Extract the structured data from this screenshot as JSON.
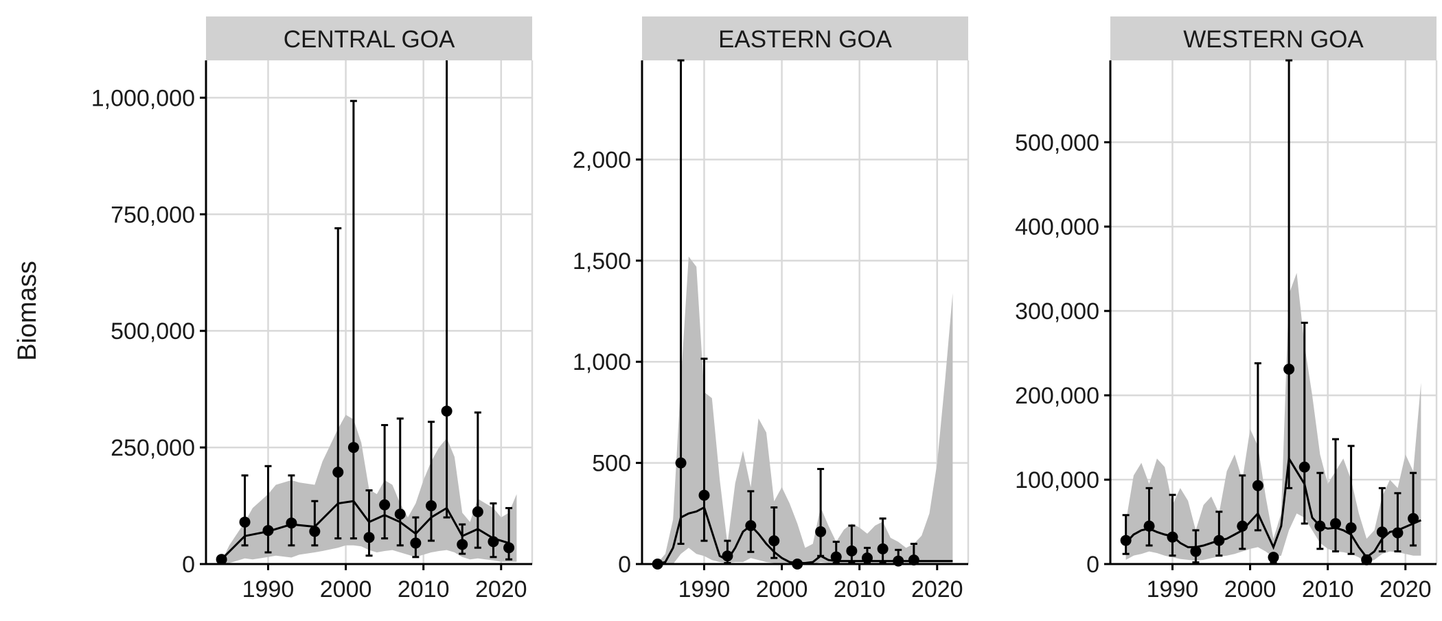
{
  "ylabel": "Biomass",
  "colors": {
    "band": "#bebebe",
    "strip": "#d1d1d1",
    "grid": "#d9d9d9",
    "line": "#000000",
    "points": "#000000",
    "axis": "#000000"
  },
  "chart_data": [
    {
      "type": "line",
      "title": "CENTRAL GOA",
      "xlim": [
        1982,
        2024
      ],
      "ylim": [
        0,
        1000000
      ],
      "ymax": 1080000,
      "xticks": [
        1990,
        2000,
        2010,
        2020
      ],
      "xtick_labels": [
        "1990",
        "2000",
        "2010",
        "2020"
      ],
      "yticks": [
        0,
        250000,
        500000,
        750000,
        1000000
      ],
      "ytick_labels": [
        "0",
        "250,000",
        "500,000",
        "750,000",
        "1,000,000"
      ],
      "band": {
        "x": [
          1984,
          1985,
          1987,
          1988,
          1990,
          1991,
          1993,
          1994,
          1996,
          1997,
          1999,
          2000,
          2001,
          2002,
          2003,
          2004,
          2005,
          2006,
          2007,
          2008,
          2009,
          2010,
          2011,
          2012,
          2013,
          2014,
          2015,
          2016,
          2017,
          2018,
          2019,
          2020,
          2021,
          2022
        ],
        "lower": [
          0,
          2000,
          12000,
          10000,
          15000,
          18000,
          14000,
          20000,
          25000,
          28000,
          35000,
          40000,
          40000,
          38000,
          30000,
          25000,
          28000,
          30000,
          25000,
          20000,
          15000,
          20000,
          25000,
          28000,
          30000,
          25000,
          15000,
          10000,
          12000,
          10000,
          8000,
          5000,
          5000,
          5000
        ],
        "upper": [
          5000,
          40000,
          90000,
          120000,
          150000,
          170000,
          180000,
          175000,
          170000,
          220000,
          290000,
          320000,
          310000,
          260000,
          160000,
          150000,
          180000,
          170000,
          130000,
          100000,
          130000,
          180000,
          220000,
          250000,
          270000,
          230000,
          110000,
          90000,
          140000,
          130000,
          120000,
          100000,
          110000,
          150000
        ]
      },
      "series": [
        {
          "x": [
            1984,
            1987,
            1990,
            1993,
            1996,
            1999,
            2001,
            2003,
            2005,
            2007,
            2009,
            2011,
            2013,
            2015,
            2017,
            2019,
            2021
          ],
          "values": [
            10000,
            60000,
            70000,
            85000,
            80000,
            130000,
            135000,
            90000,
            105000,
            90000,
            65000,
            100000,
            120000,
            60000,
            75000,
            55000,
            45000
          ]
        }
      ],
      "points": {
        "x": [
          1984,
          1987,
          1990,
          1993,
          1996,
          1999,
          2001,
          2003,
          2005,
          2007,
          2009,
          2011,
          2013,
          2015,
          2017,
          2019,
          2021
        ],
        "y": [
          10000,
          90000,
          72000,
          88000,
          70000,
          197000,
          250000,
          57000,
          127000,
          107000,
          45000,
          125000,
          328000,
          42000,
          112000,
          48000,
          35000
        ],
        "lower": [
          5000,
          40000,
          25000,
          40000,
          40000,
          55000,
          55000,
          18000,
          55000,
          40000,
          15000,
          50000,
          100000,
          22000,
          35000,
          15000,
          10000
        ],
        "upper": [
          15000,
          190000,
          210000,
          190000,
          135000,
          720000,
          993000,
          158000,
          298000,
          312000,
          100000,
          305000,
          1200000,
          85000,
          325000,
          130000,
          120000
        ]
      }
    },
    {
      "type": "line",
      "title": "EASTERN GOA",
      "xlim": [
        1982,
        2024
      ],
      "ylim": [
        0,
        2000
      ],
      "ymax": 2490,
      "xticks": [
        1990,
        2000,
        2010,
        2020
      ],
      "xtick_labels": [
        "1990",
        "2000",
        "2010",
        "2020"
      ],
      "yticks": [
        0,
        500,
        1000,
        1500,
        2000
      ],
      "ytick_labels": [
        "0",
        "500",
        "1,000",
        "1,500",
        "2,000"
      ],
      "band": {
        "x": [
          1984,
          1985,
          1986,
          1987,
          1988,
          1989,
          1990,
          1991,
          1992,
          1993,
          1994,
          1995,
          1996,
          1997,
          1998,
          1999,
          2000,
          2001,
          2002,
          2003,
          2004,
          2005,
          2006,
          2007,
          2008,
          2009,
          2010,
          2011,
          2012,
          2013,
          2014,
          2015,
          2016,
          2017,
          2018,
          2019,
          2020,
          2021,
          2022
        ],
        "lower": [
          0,
          0,
          0,
          50,
          80,
          50,
          40,
          20,
          10,
          5,
          10,
          10,
          30,
          20,
          10,
          5,
          0,
          0,
          0,
          0,
          0,
          10,
          5,
          5,
          5,
          5,
          5,
          5,
          5,
          5,
          5,
          5,
          5,
          5,
          5,
          5,
          5,
          5,
          5
        ],
        "upper": [
          5,
          50,
          220,
          900,
          1520,
          1470,
          850,
          820,
          420,
          100,
          400,
          560,
          380,
          720,
          650,
          310,
          380,
          300,
          200,
          80,
          100,
          280,
          190,
          110,
          170,
          200,
          180,
          150,
          190,
          210,
          130,
          110,
          80,
          100,
          140,
          250,
          500,
          900,
          1340
        ]
      },
      "series": [
        {
          "x": [
            1984,
            1985,
            1986,
            1987,
            1988,
            1989,
            1990,
            1991,
            1992,
            1993,
            1994,
            1995,
            1996,
            1997,
            1998,
            1999,
            2000,
            2001,
            2002,
            2003,
            2004,
            2005,
            2006,
            2007,
            2008,
            2009,
            2010,
            2011,
            2012,
            2013,
            2014,
            2015,
            2016,
            2017,
            2018,
            2019,
            2020,
            2021,
            2022
          ],
          "values": [
            0,
            10,
            80,
            230,
            250,
            260,
            280,
            160,
            40,
            20,
            80,
            160,
            190,
            150,
            100,
            60,
            30,
            10,
            5,
            5,
            10,
            40,
            20,
            15,
            15,
            15,
            15,
            15,
            15,
            15,
            15,
            15,
            15,
            15,
            15,
            15,
            15,
            15,
            15
          ]
        }
      ],
      "points": {
        "x": [
          1984,
          1987,
          1990,
          1993,
          1996,
          1999,
          2002,
          2005,
          2007,
          2009,
          2011,
          2013,
          2015,
          2017
        ],
        "y": [
          0,
          500,
          340,
          40,
          190,
          115,
          0,
          160,
          35,
          65,
          30,
          75,
          15,
          20
        ],
        "lower": [
          0,
          100,
          115,
          5,
          60,
          30,
          0,
          40,
          5,
          10,
          5,
          10,
          0,
          2
        ],
        "upper": [
          0,
          2490,
          1015,
          115,
          360,
          280,
          0,
          470,
          110,
          190,
          80,
          225,
          70,
          100
        ]
      }
    },
    {
      "type": "line",
      "title": "WESTERN GOA",
      "xlim": [
        1982,
        2024
      ],
      "ylim": [
        0,
        500000
      ],
      "ymax": 597000,
      "xticks": [
        1990,
        2000,
        2010,
        2020
      ],
      "xtick_labels": [
        "1990",
        "2000",
        "2010",
        "2020"
      ],
      "yticks": [
        0,
        100000,
        200000,
        300000,
        400000,
        500000
      ],
      "ytick_labels": [
        "0",
        "100,000",
        "200,000",
        "300,000",
        "400,000",
        "500,000"
      ],
      "band": {
        "x": [
          1984,
          1985,
          1986,
          1987,
          1988,
          1989,
          1990,
          1991,
          1992,
          1993,
          1994,
          1995,
          1996,
          1997,
          1998,
          1999,
          2000,
          2001,
          2002,
          2003,
          2004,
          2005,
          2006,
          2007,
          2008,
          2009,
          2010,
          2011,
          2012,
          2013,
          2014,
          2015,
          2016,
          2017,
          2018,
          2019,
          2020,
          2021,
          2022
        ],
        "lower": [
          5000,
          10000,
          12000,
          15000,
          13000,
          10000,
          8000,
          6000,
          5000,
          4000,
          5000,
          7000,
          9000,
          10000,
          12000,
          15000,
          18000,
          20000,
          15000,
          8000,
          10000,
          40000,
          60000,
          55000,
          40000,
          25000,
          18000,
          15000,
          14000,
          12000,
          8000,
          2000,
          5000,
          12000,
          15000,
          14000,
          12000,
          10000,
          10000
        ],
        "upper": [
          50000,
          105000,
          120000,
          95000,
          125000,
          115000,
          70000,
          90000,
          75000,
          40000,
          70000,
          80000,
          60000,
          110000,
          130000,
          100000,
          160000,
          140000,
          80000,
          30000,
          60000,
          320000,
          345000,
          260000,
          200000,
          130000,
          95000,
          110000,
          125000,
          100000,
          60000,
          30000,
          40000,
          80000,
          100000,
          90000,
          130000,
          110000,
          215000
        ]
      },
      "series": [
        {
          "x": [
            1984,
            1985,
            1986,
            1987,
            1988,
            1989,
            1990,
            1991,
            1992,
            1993,
            1994,
            1995,
            1996,
            1997,
            1998,
            1999,
            2000,
            2001,
            2002,
            2003,
            2004,
            2005,
            2006,
            2007,
            2008,
            2009,
            2010,
            2011,
            2012,
            2013,
            2014,
            2015,
            2016,
            2017,
            2018,
            2019,
            2020,
            2021,
            2022
          ],
          "values": [
            25000,
            35000,
            40000,
            42000,
            38000,
            35000,
            33000,
            25000,
            20000,
            20000,
            22000,
            25000,
            28000,
            30000,
            35000,
            40000,
            50000,
            60000,
            40000,
            20000,
            45000,
            125000,
            110000,
            95000,
            55000,
            45000,
            42000,
            43000,
            40000,
            35000,
            20000,
            8000,
            15000,
            30000,
            38000,
            40000,
            44000,
            48000,
            52000
          ]
        }
      ],
      "points": {
        "x": [
          1984,
          1987,
          1990,
          1993,
          1996,
          1999,
          2001,
          2003,
          2005,
          2007,
          2009,
          2011,
          2013,
          2015,
          2017,
          2019,
          2021
        ],
        "y": [
          28000,
          45000,
          32000,
          15000,
          28000,
          45000,
          93000,
          8000,
          231000,
          115000,
          45000,
          48000,
          43000,
          5000,
          38000,
          37000,
          54000
        ],
        "lower": [
          12000,
          22000,
          10000,
          2000,
          10000,
          18000,
          40000,
          2000,
          90000,
          48000,
          18000,
          15000,
          12000,
          0,
          15000,
          15000,
          22000
        ],
        "upper": [
          58000,
          90000,
          82000,
          40000,
          62000,
          105000,
          238000,
          12000,
          597000,
          286000,
          108000,
          148000,
          140000,
          10000,
          90000,
          84000,
          108000
        ]
      }
    }
  ]
}
